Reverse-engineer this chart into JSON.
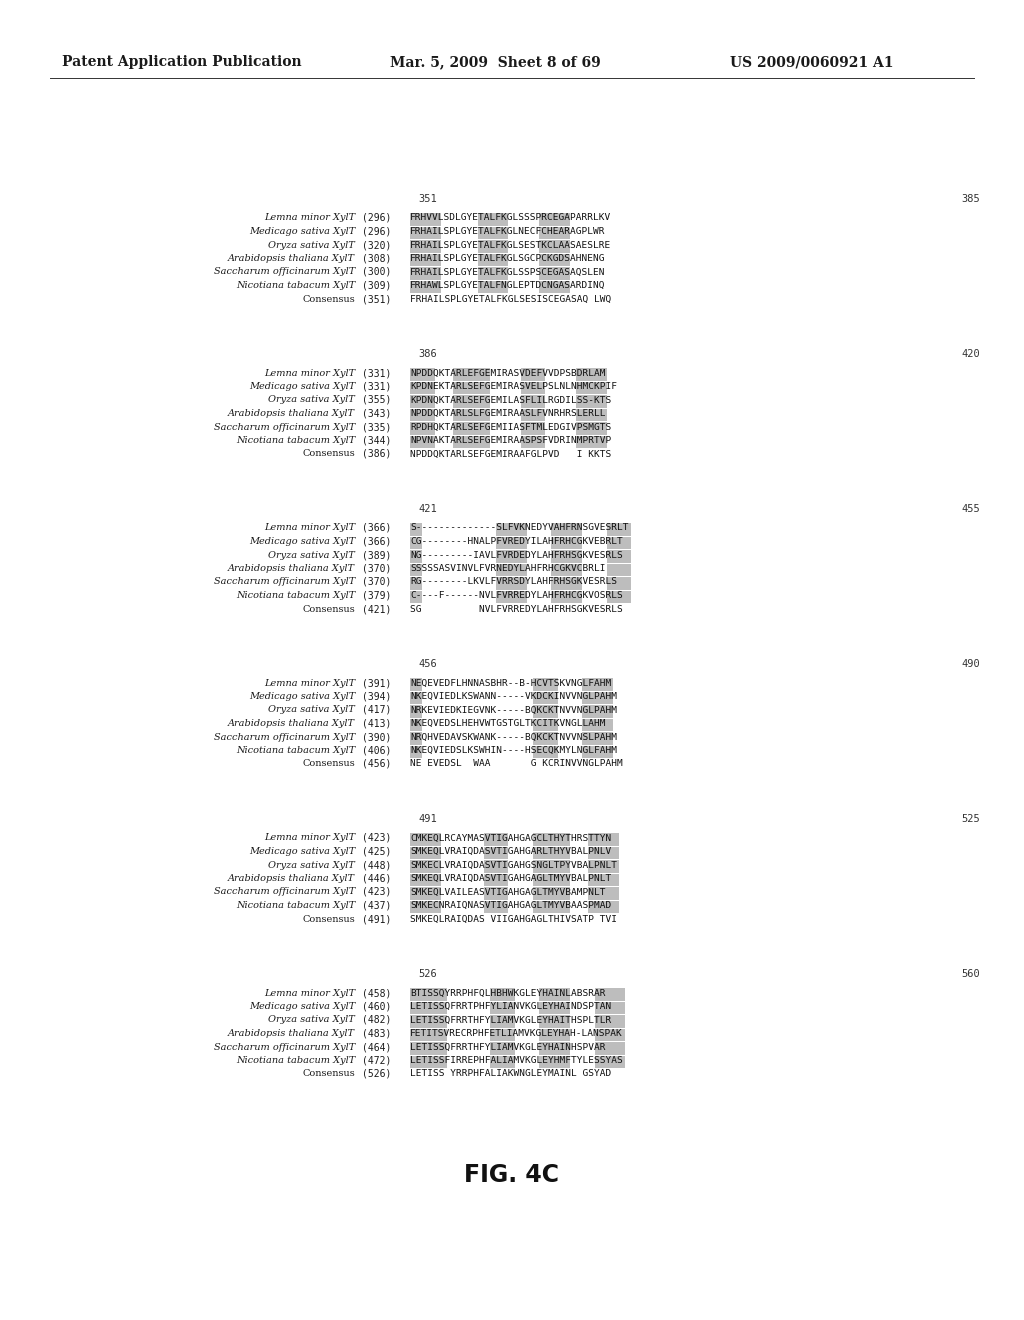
{
  "header_left": "Patent Application Publication",
  "header_center": "Mar. 5, 2009  Sheet 8 of 69",
  "header_right": "US 2009/0060921 A1",
  "figure_label": "FIG. 4C",
  "background_color": "#ffffff",
  "blocks": [
    {
      "range_left": "351",
      "range_right": "385",
      "sequences": [
        {
          "name": "Lemna minor XylT",
          "num": "(296)",
          "seq": "FRHVVLSDLGYETALFKGLSSSPRCEGAPARRLKV",
          "highlight": true
        },
        {
          "name": "Medicago sativa XylT",
          "num": "(296)",
          "seq": "FRHAILSPLGYETALFKGLNECFCHEARAGPLWR",
          "highlight": true
        },
        {
          "name": "Oryza sativa XylT",
          "num": "(320)",
          "seq": "FRHAILSPLGYETALFKGLSESTKCLAASAESLRE",
          "highlight": true
        },
        {
          "name": "Arabidopsis thaliana XylT",
          "num": "(308)",
          "seq": "FRHAILSPLGYETALFKGLSGCPCKGDSAHNENG",
          "highlight": true
        },
        {
          "name": "Saccharum officinarum XylT",
          "num": "(300)",
          "seq": "FRHAILSPLGYETALFKGLSSPSCEGASAQSLEN",
          "highlight": true
        },
        {
          "name": "Nicotiana tabacum XylT",
          "num": "(309)",
          "seq": "FRHAWLSPLGYETALFNGLEPTDCNGASARDINQ",
          "highlight": true
        },
        {
          "name": "Consensus",
          "num": "(351)",
          "seq": "FRHAILSPLGYETALFKGLSESISCEGASAQ LWQ",
          "highlight": false
        }
      ],
      "hl_ranges": [
        [
          0,
          5
        ],
        [
          11,
          16
        ],
        [
          21,
          26
        ]
      ]
    },
    {
      "range_left": "386",
      "range_right": "420",
      "sequences": [
        {
          "name": "Lemna minor XylT",
          "num": "(331)",
          "seq": "NPDDQKTARLEFGEMIRASVDEFVVDPSBDRLAM",
          "highlight": true
        },
        {
          "name": "Medicago sativa XylT",
          "num": "(331)",
          "seq": "KPDNEKTARLSEFGEMIRASVELPSLNLNHMCKPIF",
          "highlight": true
        },
        {
          "name": "Oryza sativa XylT",
          "num": "(355)",
          "seq": "KPDNQKTARLSEFGEMILASFLILRGDILSS-KTS",
          "highlight": true
        },
        {
          "name": "Arabidopsis thaliana XylT",
          "num": "(343)",
          "seq": "NPDDQKTARLSLFGEMIRAASLFVNRHRSLERLL",
          "highlight": true
        },
        {
          "name": "Saccharum officinarum XylT",
          "num": "(335)",
          "seq": "RPDHQKTARLSEFGEMIIASFTMLEDGIVPSMGTS",
          "highlight": true
        },
        {
          "name": "Nicotiana tabacum XylT",
          "num": "(344)",
          "seq": "NPVNAKTARLSEFGEMIRAASPSFVDRINMPRTVP",
          "highlight": true
        },
        {
          "name": "Consensus",
          "num": "(386)",
          "seq": "NPDDQKTARLSEFGEMIRAAFGLPVD   I KKTS",
          "highlight": false
        }
      ],
      "hl_ranges": [
        [
          0,
          4
        ],
        [
          7,
          13
        ],
        [
          18,
          22
        ],
        [
          27,
          32
        ]
      ]
    },
    {
      "range_left": "421",
      "range_right": "455",
      "sequences": [
        {
          "name": "Lemna minor XylT",
          "num": "(366)",
          "seq": "S--------------SLFVKNEDYVAHFRNSGVESRLT",
          "highlight": true
        },
        {
          "name": "Medicago sativa XylT",
          "num": "(366)",
          "seq": "CG--------HNALPFVREDYILAHFRHCGKVEBRLT",
          "highlight": true
        },
        {
          "name": "Oryza sativa XylT",
          "num": "(389)",
          "seq": "NG---------IAVLFVRDEDYLAHFRHSGKVESRLS",
          "highlight": true
        },
        {
          "name": "Arabidopsis thaliana XylT",
          "num": "(370)",
          "seq": "SSSSSASVINVLFVRNEDYLAHFRHCGKVCBRLI",
          "highlight": true
        },
        {
          "name": "Saccharum officinarum XylT",
          "num": "(370)",
          "seq": "RG--------LKVLFVRRSDYLAHFRHSGKVESRLS",
          "highlight": true
        },
        {
          "name": "Nicotiana tabacum XylT",
          "num": "(379)",
          "seq": "C----F------NVLFVRREDYLAHFRHCGKVOSRLS",
          "highlight": true
        },
        {
          "name": "Consensus",
          "num": "(421)",
          "seq": "SG          NVLFVRREDYLAHFRHSGKVESRLS",
          "highlight": false
        }
      ],
      "hl_ranges": [
        [
          0,
          2
        ],
        [
          14,
          19
        ],
        [
          23,
          28
        ],
        [
          32,
          36
        ]
      ]
    },
    {
      "range_left": "456",
      "range_right": "490",
      "sequences": [
        {
          "name": "Lemna minor XylT",
          "num": "(391)",
          "seq": "NEQEVEDFLHNNASBHR--B-HCVTSKVNGLFAHM",
          "highlight": true
        },
        {
          "name": "Medicago sativa XylT",
          "num": "(394)",
          "seq": "NKEQVIEDLKSWANN-----VKDCKINVVNGLPAHM",
          "highlight": true
        },
        {
          "name": "Oryza sativa XylT",
          "num": "(417)",
          "seq": "NRKEVIEDKIEGVNK-----BQKCKTNVVNGLPAHM",
          "highlight": true
        },
        {
          "name": "Arabidopsis thaliana XylT",
          "num": "(413)",
          "seq": "NKEQVEDSLHEHVWTGSTGLTKCITKVNGLLAHM",
          "highlight": true
        },
        {
          "name": "Saccharum officinarum XylT",
          "num": "(390)",
          "seq": "NRQHVEDAVSKWANK-----BQKCKTNVVNSLPAHM",
          "highlight": true
        },
        {
          "name": "Nicotiana tabacum XylT",
          "num": "(406)",
          "seq": "NKEQVIEDSLKSWHIN----HSECQKMYLNGLFAHM",
          "highlight": true
        },
        {
          "name": "Consensus",
          "num": "(456)",
          "seq": "NE EVEDSL  WAA       G KCRINVVNGLPAHM",
          "highlight": false
        }
      ],
      "hl_ranges": [
        [
          0,
          2
        ],
        [
          20,
          24
        ],
        [
          28,
          33
        ]
      ]
    },
    {
      "range_left": "491",
      "range_right": "525",
      "sequences": [
        {
          "name": "Lemna minor XylT",
          "num": "(423)",
          "seq": "CMKEQLRCAYMASVTIGAHGAGCLTHYTHRSTTYN",
          "highlight": true
        },
        {
          "name": "Medicago sativa XylT",
          "num": "(425)",
          "seq": "SMKEQLVRAIQDASVTIGAHGARLTHYVBALPNLV",
          "highlight": true
        },
        {
          "name": "Oryza sativa XylT",
          "num": "(448)",
          "seq": "SMKECLVRAIQDASVTIGAHGSNGLTPYVBALPNLT",
          "highlight": true
        },
        {
          "name": "Arabidopsis thaliana XylT",
          "num": "(446)",
          "seq": "SMKEQLVRAIQDASVTIGAHGAGLTMYVBALPNLT",
          "highlight": true
        },
        {
          "name": "Saccharum officinarum XylT",
          "num": "(423)",
          "seq": "SMKEQLVAILEASVTIGAHGAGLTMYVBAMPNLT",
          "highlight": true
        },
        {
          "name": "Nicotiana tabacum XylT",
          "num": "(437)",
          "seq": "SMKECNRAIQNASVTIGAHGAGLTMYVBAASPMAD",
          "highlight": true
        },
        {
          "name": "Consensus",
          "num": "(491)",
          "seq": "SMKEQLRAIQDAS VIIGAHGAGLTHIVSATP TVI",
          "highlight": false
        }
      ],
      "hl_ranges": [
        [
          0,
          5
        ],
        [
          12,
          16
        ],
        [
          20,
          26
        ],
        [
          29,
          34
        ]
      ]
    },
    {
      "range_left": "526",
      "range_right": "560",
      "sequences": [
        {
          "name": "Lemna minor XylT",
          "num": "(458)",
          "seq": "BTISSQYRRPHFQLHBHWKGLEYHAINLABSRAR",
          "highlight": true
        },
        {
          "name": "Medicago sativa XylT",
          "num": "(460)",
          "seq": "LETISSQFRRTPHFYLIANVKGLEYHAINDSPTAN",
          "highlight": true
        },
        {
          "name": "Oryza sativa XylT",
          "num": "(482)",
          "seq": "LETISSQFRRTHFYLIAMVKGLEYHAITHSPLTLR",
          "highlight": true
        },
        {
          "name": "Arabidopsis thaliana XylT",
          "num": "(483)",
          "seq": "FETITSVRECRPHFETLIAMVKGLEYHAH-LANSPAK",
          "highlight": true
        },
        {
          "name": "Saccharum officinarum XylT",
          "num": "(464)",
          "seq": "LETISSQFRRTHFYLIAMVKGLEYHAINHSPVAR",
          "highlight": true
        },
        {
          "name": "Nicotiana tabacum XylT",
          "num": "(472)",
          "seq": "LETISSFIRREPHFALIAMVKGLEYHMFTYLESSYAS",
          "highlight": true
        },
        {
          "name": "Consensus",
          "num": "(526)",
          "seq": "LETISS YRRPHFALIAKWNGLEYMAINL GSYAD",
          "highlight": false
        }
      ],
      "hl_ranges": [
        [
          0,
          6
        ],
        [
          13,
          17
        ],
        [
          21,
          26
        ],
        [
          30,
          35
        ]
      ]
    }
  ]
}
